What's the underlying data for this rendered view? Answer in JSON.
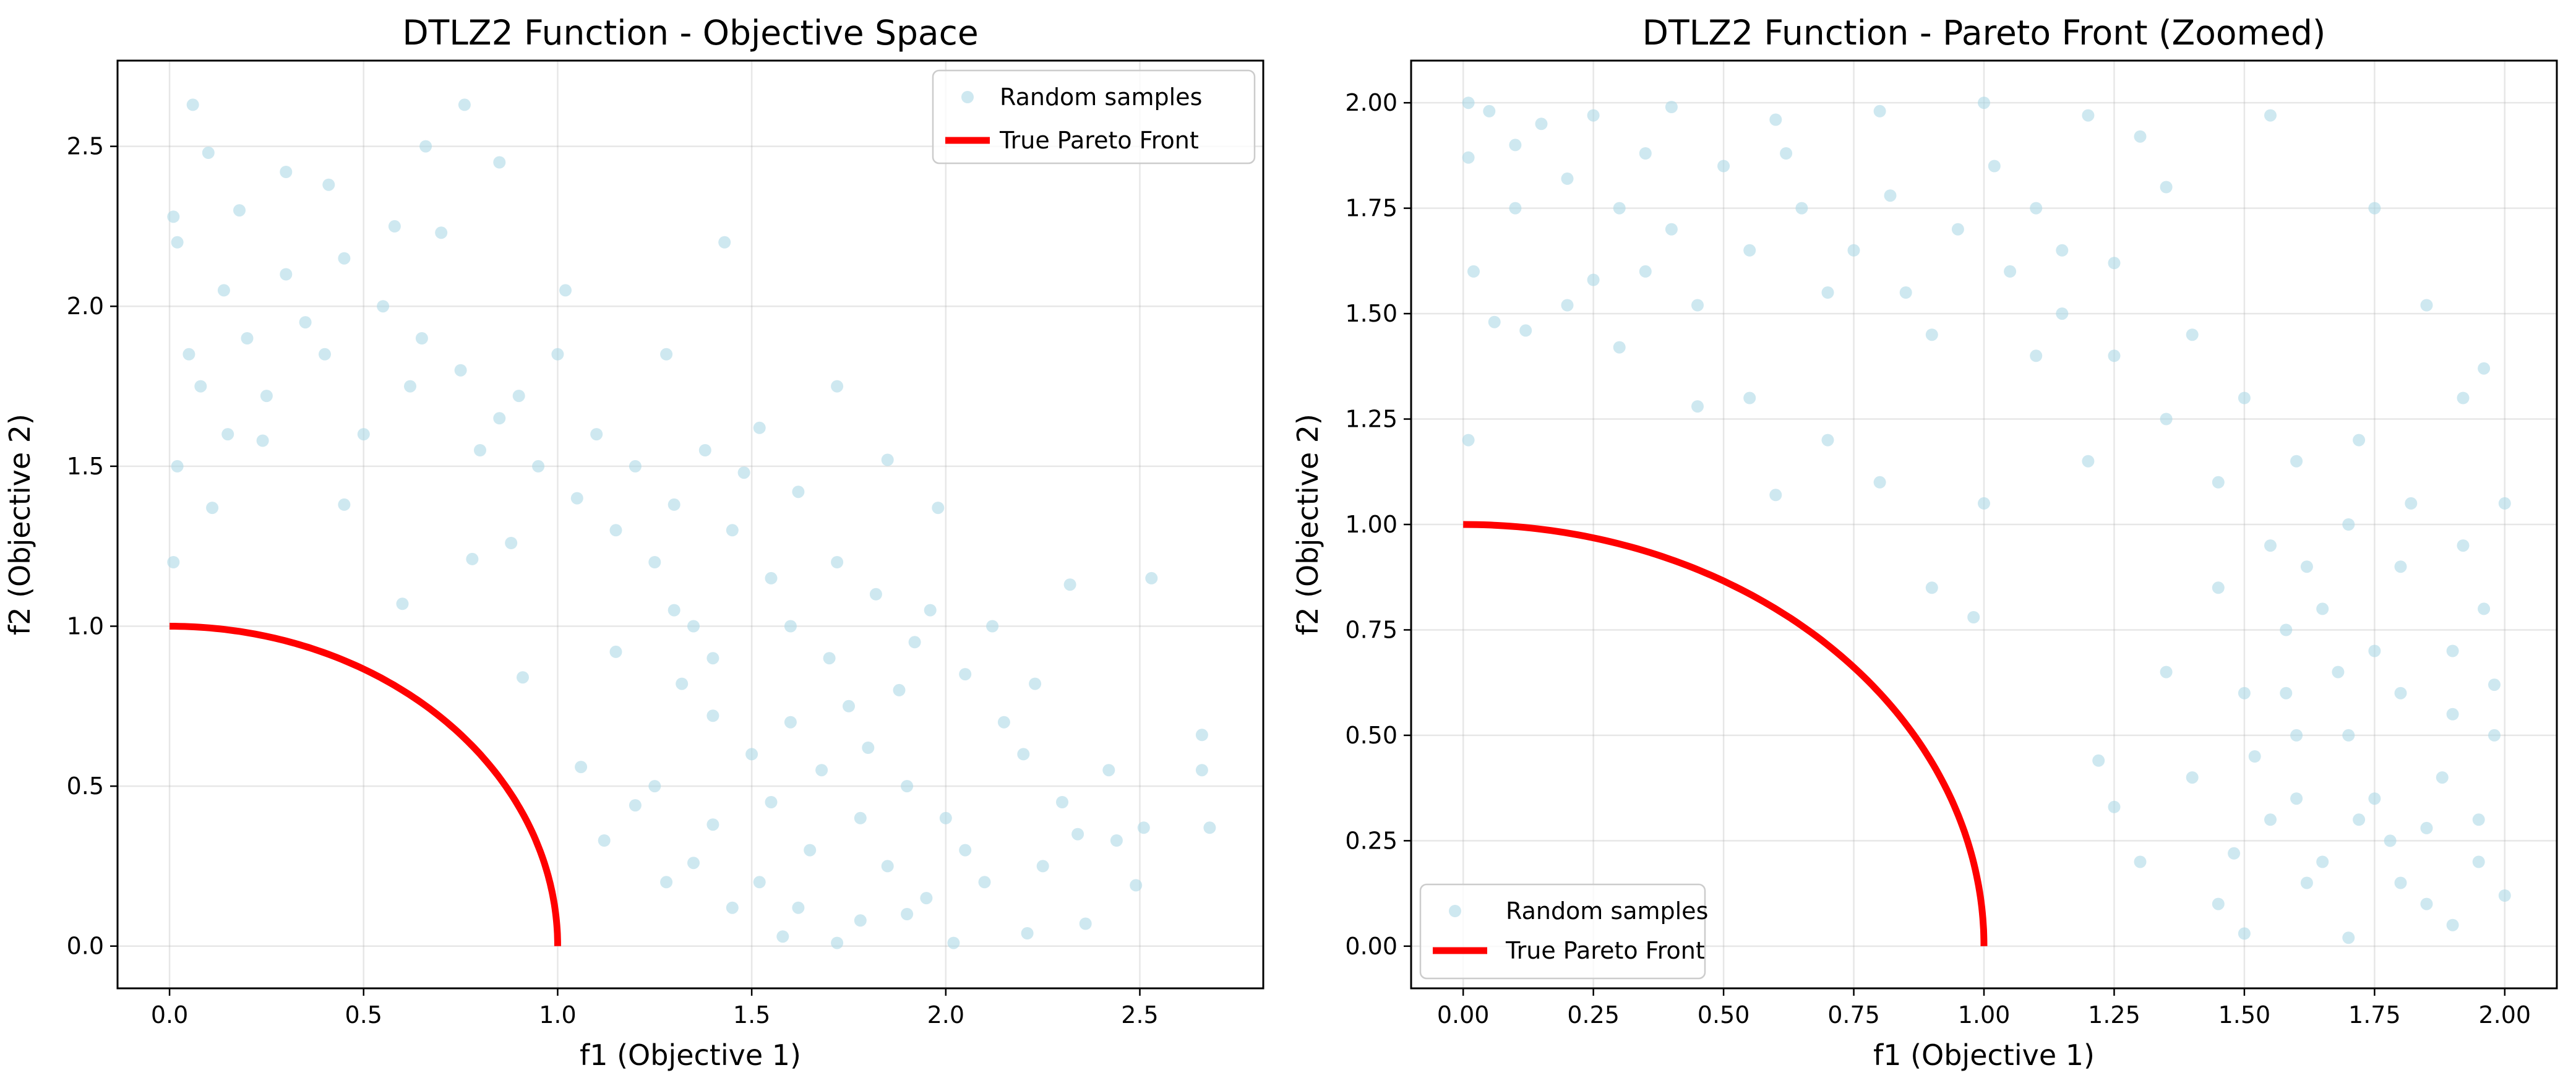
{
  "figure": {
    "sample_color": "#add8e6",
    "front_color": "#ff0000"
  },
  "chart_data": [
    {
      "id": "left",
      "type": "scatter",
      "title": "DTLZ2 Function - Objective Space",
      "xlabel": "f1 (Objective 1)",
      "ylabel": "f2 (Objective 2)",
      "xlim": [
        -0.134,
        2.818
      ],
      "ylim": [
        -0.132,
        2.768
      ],
      "xticks": [
        0,
        0.5,
        1,
        1.5,
        2,
        2.5
      ],
      "xtick_labels": [
        "0.0",
        "0.5",
        "1.0",
        "1.5",
        "2.0",
        "2.5"
      ],
      "yticks": [
        0,
        0.5,
        1,
        1.5,
        2,
        2.5
      ],
      "ytick_labels": [
        "0.0",
        "0.5",
        "1.0",
        "1.5",
        "2.0",
        "2.5"
      ],
      "grid": true,
      "legend_position": "upper right",
      "series": [
        {
          "name": "Random samples",
          "kind": "scatter",
          "color": "#add8e6",
          "alpha": 0.6,
          "points": [
            [
              0.01,
              2.28
            ],
            [
              0.06,
              2.63
            ],
            [
              0.02,
              2.2
            ],
            [
              0.01,
              1.2
            ],
            [
              0.02,
              1.5
            ],
            [
              0.66,
              2.5
            ],
            [
              0.76,
              2.63
            ],
            [
              0.85,
              2.45
            ],
            [
              1.43,
              2.2
            ],
            [
              0.3,
              2.42
            ],
            [
              0.1,
              2.48
            ],
            [
              0.41,
              2.38
            ],
            [
              0.7,
              2.23
            ],
            [
              1.02,
              2.05
            ],
            [
              1.28,
              1.85
            ],
            [
              1.52,
              1.62
            ],
            [
              1.72,
              1.75
            ],
            [
              1.85,
              1.52
            ],
            [
              1.98,
              1.37
            ],
            [
              1.96,
              1.05
            ],
            [
              2.12,
              1.0
            ],
            [
              2.23,
              0.82
            ],
            [
              2.32,
              1.13
            ],
            [
              2.53,
              1.15
            ],
            [
              2.42,
              0.55
            ],
            [
              2.51,
              0.37
            ],
            [
              2.66,
              0.66
            ],
            [
              2.66,
              0.55
            ],
            [
              2.68,
              0.37
            ],
            [
              2.49,
              0.19
            ],
            [
              2.44,
              0.33
            ],
            [
              2.36,
              0.07
            ],
            [
              2.21,
              0.04
            ],
            [
              2.02,
              0.01
            ],
            [
              1.72,
              0.01
            ],
            [
              1.58,
              0.03
            ],
            [
              1.45,
              0.12
            ],
            [
              1.28,
              0.2
            ],
            [
              1.35,
              0.26
            ],
            [
              1.4,
              0.38
            ],
            [
              1.2,
              0.44
            ],
            [
              1.12,
              0.33
            ],
            [
              1.06,
              0.56
            ],
            [
              0.91,
              0.84
            ],
            [
              1.15,
              0.92
            ],
            [
              1.3,
              1.05
            ],
            [
              0.78,
              1.21
            ],
            [
              0.6,
              1.07
            ],
            [
              0.88,
              1.26
            ],
            [
              0.24,
              1.58
            ],
            [
              0.45,
              1.38
            ],
            [
              0.11,
              1.37
            ],
            [
              0.08,
              1.75
            ],
            [
              0.14,
              2.05
            ],
            [
              0.2,
              1.9
            ],
            [
              0.4,
              1.85
            ],
            [
              0.5,
              1.6
            ],
            [
              0.55,
              2.0
            ],
            [
              0.62,
              1.75
            ],
            [
              0.8,
              1.55
            ],
            [
              0.9,
              1.72
            ],
            [
              1.0,
              1.85
            ],
            [
              1.1,
              1.6
            ],
            [
              1.2,
              1.5
            ],
            [
              1.3,
              1.38
            ],
            [
              1.45,
              1.3
            ],
            [
              1.55,
              1.15
            ],
            [
              1.6,
              1.0
            ],
            [
              1.7,
              0.9
            ],
            [
              1.75,
              0.75
            ],
            [
              1.8,
              0.62
            ],
            [
              1.9,
              0.5
            ],
            [
              2.0,
              0.4
            ],
            [
              2.05,
              0.3
            ],
            [
              2.1,
              0.2
            ],
            [
              1.95,
              0.15
            ],
            [
              1.85,
              0.25
            ],
            [
              1.65,
              0.3
            ],
            [
              1.55,
              0.45
            ],
            [
              1.5,
              0.6
            ],
            [
              1.6,
              0.7
            ],
            [
              1.68,
              0.55
            ],
            [
              1.78,
              0.4
            ],
            [
              1.88,
              0.8
            ],
            [
              1.4,
              0.9
            ],
            [
              1.35,
              1.0
            ],
            [
              1.25,
              1.2
            ],
            [
              1.15,
              1.3
            ],
            [
              1.05,
              1.4
            ],
            [
              0.95,
              1.5
            ],
            [
              0.85,
              1.65
            ],
            [
              0.75,
              1.8
            ],
            [
              0.65,
              1.9
            ],
            [
              0.35,
              1.95
            ],
            [
              0.25,
              1.72
            ],
            [
              0.15,
              1.6
            ],
            [
              0.05,
              1.85
            ],
            [
              0.3,
              2.1
            ],
            [
              0.45,
              2.15
            ],
            [
              0.58,
              2.25
            ],
            [
              0.18,
              2.3
            ],
            [
              1.62,
              1.42
            ],
            [
              1.48,
              1.48
            ],
            [
              1.38,
              1.55
            ],
            [
              2.2,
              0.6
            ],
            [
              2.3,
              0.45
            ],
            [
              2.15,
              0.7
            ],
            [
              2.05,
              0.85
            ],
            [
              1.92,
              0.95
            ],
            [
              1.82,
              1.1
            ],
            [
              1.72,
              1.2
            ],
            [
              1.52,
              0.2
            ],
            [
              1.62,
              0.12
            ],
            [
              1.78,
              0.08
            ],
            [
              1.9,
              0.1
            ],
            [
              2.25,
              0.25
            ],
            [
              2.34,
              0.35
            ],
            [
              1.25,
              0.5
            ],
            [
              1.4,
              0.72
            ],
            [
              1.32,
              0.82
            ]
          ]
        },
        {
          "name": "True Pareto Front",
          "kind": "line",
          "color": "#ff0000",
          "function": "quarter-circle f1^2 + f2^2 = 1",
          "x_range": [
            0,
            1
          ]
        }
      ]
    },
    {
      "id": "right",
      "type": "scatter",
      "title": "DTLZ2 Function - Pareto Front (Zoomed)",
      "xlabel": "f1 (Objective 1)",
      "ylabel": "f2 (Objective 2)",
      "xlim": [
        -0.1,
        2.1
      ],
      "ylim": [
        -0.1,
        2.1
      ],
      "xticks": [
        0,
        0.25,
        0.5,
        0.75,
        1,
        1.25,
        1.5,
        1.75,
        2
      ],
      "xtick_labels": [
        "0.00",
        "0.25",
        "0.50",
        "0.75",
        "1.00",
        "1.25",
        "1.50",
        "1.75",
        "2.00"
      ],
      "yticks": [
        0,
        0.25,
        0.5,
        0.75,
        1,
        1.25,
        1.5,
        1.75,
        2
      ],
      "ytick_labels": [
        "0.00",
        "0.25",
        "0.50",
        "0.75",
        "1.00",
        "1.25",
        "1.50",
        "1.75",
        "2.00"
      ],
      "grid": true,
      "legend_position": "lower left",
      "series": [
        {
          "name": "Random samples",
          "kind": "scatter",
          "color": "#add8e6",
          "alpha": 0.6,
          "points": [
            [
              0.01,
              2.0
            ],
            [
              0.05,
              1.98
            ],
            [
              0.1,
              1.9
            ],
            [
              0.01,
              1.87
            ],
            [
              0.02,
              1.6
            ],
            [
              0.01,
              1.2
            ],
            [
              0.06,
              1.48
            ],
            [
              0.12,
              1.46
            ],
            [
              0.2,
              1.52
            ],
            [
              0.3,
              1.42
            ],
            [
              0.35,
              1.6
            ],
            [
              0.45,
              1.28
            ],
            [
              0.55,
              1.3
            ],
            [
              0.6,
              1.07
            ],
            [
              0.7,
              1.2
            ],
            [
              0.8,
              1.1
            ],
            [
              0.9,
              0.85
            ],
            [
              0.98,
              0.78
            ],
            [
              1.0,
              1.05
            ],
            [
              1.1,
              1.4
            ],
            [
              1.2,
              1.15
            ],
            [
              1.22,
              0.44
            ],
            [
              1.25,
              0.33
            ],
            [
              1.3,
              0.2
            ],
            [
              1.35,
              0.65
            ],
            [
              1.4,
              0.4
            ],
            [
              1.45,
              0.1
            ],
            [
              1.5,
              0.03
            ],
            [
              1.55,
              0.3
            ],
            [
              1.6,
              0.5
            ],
            [
              1.65,
              0.2
            ],
            [
              1.7,
              0.02
            ],
            [
              1.75,
              0.35
            ],
            [
              1.8,
              0.15
            ],
            [
              1.85,
              0.1
            ],
            [
              1.9,
              0.05
            ],
            [
              1.95,
              0.2
            ],
            [
              2.0,
              0.12
            ],
            [
              1.98,
              0.5
            ],
            [
              1.96,
              0.8
            ],
            [
              2.0,
              1.05
            ],
            [
              1.92,
              1.3
            ],
            [
              1.96,
              1.37
            ],
            [
              1.85,
              1.52
            ],
            [
              1.75,
              1.75
            ],
            [
              1.55,
              1.97
            ],
            [
              1.35,
              1.8
            ],
            [
              1.3,
              1.92
            ],
            [
              1.2,
              1.97
            ],
            [
              1.0,
              2.0
            ],
            [
              0.8,
              1.98
            ],
            [
              0.6,
              1.96
            ],
            [
              0.4,
              1.99
            ],
            [
              0.25,
              1.97
            ],
            [
              0.15,
              1.95
            ],
            [
              0.5,
              1.85
            ],
            [
              0.65,
              1.75
            ],
            [
              0.75,
              1.65
            ],
            [
              0.85,
              1.55
            ],
            [
              0.95,
              1.7
            ],
            [
              1.05,
              1.6
            ],
            [
              1.15,
              1.5
            ],
            [
              1.25,
              1.62
            ],
            [
              1.4,
              1.45
            ],
            [
              1.5,
              1.3
            ],
            [
              1.6,
              1.15
            ],
            [
              1.7,
              1.0
            ],
            [
              1.8,
              0.9
            ],
            [
              1.75,
              0.7
            ],
            [
              1.65,
              0.8
            ],
            [
              1.55,
              0.95
            ],
            [
              1.45,
              1.1
            ],
            [
              1.35,
              1.25
            ],
            [
              1.45,
              0.85
            ],
            [
              1.5,
              0.6
            ],
            [
              1.6,
              0.35
            ],
            [
              1.7,
              0.5
            ],
            [
              1.8,
              0.6
            ],
            [
              1.9,
              0.7
            ],
            [
              1.88,
              0.4
            ],
            [
              1.78,
              0.25
            ],
            [
              1.68,
              0.65
            ],
            [
              1.58,
              0.75
            ],
            [
              1.52,
              0.45
            ],
            [
              1.62,
              0.9
            ],
            [
              1.72,
              1.2
            ],
            [
              1.82,
              1.05
            ],
            [
              1.92,
              0.95
            ],
            [
              0.3,
              1.75
            ],
            [
              0.2,
              1.82
            ],
            [
              0.4,
              1.7
            ],
            [
              0.55,
              1.65
            ],
            [
              0.7,
              1.55
            ],
            [
              0.9,
              1.45
            ],
            [
              1.1,
              1.75
            ],
            [
              1.25,
              1.4
            ],
            [
              0.1,
              1.75
            ],
            [
              0.25,
              1.58
            ],
            [
              0.35,
              1.88
            ],
            [
              0.45,
              1.52
            ],
            [
              0.62,
              1.88
            ],
            [
              0.82,
              1.78
            ],
            [
              1.02,
              1.85
            ],
            [
              1.15,
              1.65
            ],
            [
              1.95,
              0.3
            ],
            [
              1.85,
              0.28
            ],
            [
              1.72,
              0.3
            ],
            [
              1.62,
              0.15
            ],
            [
              1.48,
              0.22
            ],
            [
              1.58,
              0.6
            ],
            [
              1.9,
              0.55
            ],
            [
              1.98,
              0.62
            ]
          ]
        },
        {
          "name": "True Pareto Front",
          "kind": "line",
          "color": "#ff0000",
          "function": "quarter-circle f1^2 + f2^2 = 1",
          "x_range": [
            0,
            1
          ]
        }
      ]
    }
  ]
}
